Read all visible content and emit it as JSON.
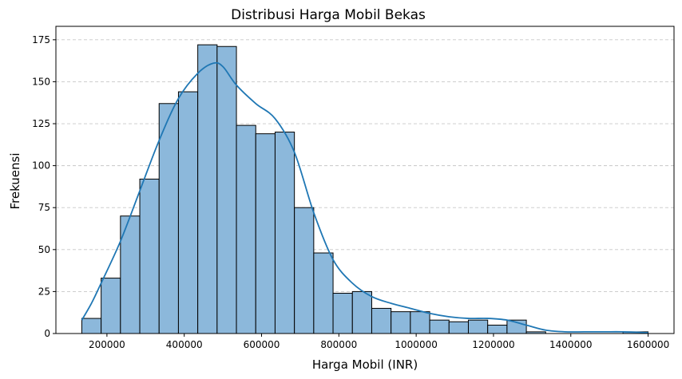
{
  "chart_data": {
    "type": "bar",
    "title": "Distribusi Harga Mobil Bekas",
    "xlabel": "Harga Mobil (INR)",
    "ylabel": "Frekuensi",
    "xlim": [
      68000,
      1667000
    ],
    "ylim": [
      0,
      183
    ],
    "grid": "y-dashed",
    "x_ticks": [
      200000,
      400000,
      600000,
      800000,
      1000000,
      1200000,
      1400000,
      1600000
    ],
    "x_tick_labels": [
      "200000",
      "400000",
      "600000",
      "800000",
      "1000000",
      "1200000",
      "1400000",
      "1600000"
    ],
    "y_ticks": [
      0,
      25,
      50,
      75,
      100,
      125,
      150,
      175
    ],
    "y_tick_labels": [
      "0",
      "25",
      "50",
      "75",
      "100",
      "125",
      "150",
      "175"
    ],
    "bin_edges": [
      135000,
      185000,
      235000,
      285000,
      335000,
      385000,
      435000,
      485000,
      535000,
      585000,
      635000,
      685000,
      735000,
      785000,
      835000,
      885000,
      935000,
      985000,
      1035000,
      1085000,
      1135000,
      1185000,
      1235000,
      1285000,
      1335000,
      1385000,
      1435000,
      1485000,
      1535000,
      1600000
    ],
    "counts": [
      9,
      33,
      70,
      92,
      137,
      144,
      172,
      171,
      124,
      119,
      120,
      75,
      48,
      24,
      25,
      15,
      13,
      13,
      8,
      7,
      8,
      5,
      8,
      1,
      0,
      0,
      0,
      0,
      1
    ],
    "kde": {
      "x": [
        135000,
        160000,
        185000,
        235000,
        285000,
        335000,
        385000,
        435000,
        475000,
        500000,
        535000,
        585000,
        635000,
        685000,
        735000,
        785000,
        835000,
        885000,
        935000,
        985000,
        1035000,
        1085000,
        1135000,
        1185000,
        1235000,
        1285000,
        1335000,
        1385000,
        1435000,
        1485000,
        1535000,
        1600000
      ],
      "y": [
        8,
        18,
        30,
        55,
        85,
        115,
        140,
        155,
        161,
        159,
        148,
        137,
        128,
        108,
        72,
        44,
        30,
        22,
        18,
        15,
        12,
        10,
        9,
        9,
        8,
        5,
        2,
        1,
        1,
        1,
        1,
        0.5
      ]
    },
    "colors": {
      "bar_fill": "#8cb8db",
      "bar_edge": "#000000",
      "kde_line": "#1f77b4",
      "grid": "#c8c8c8"
    }
  }
}
